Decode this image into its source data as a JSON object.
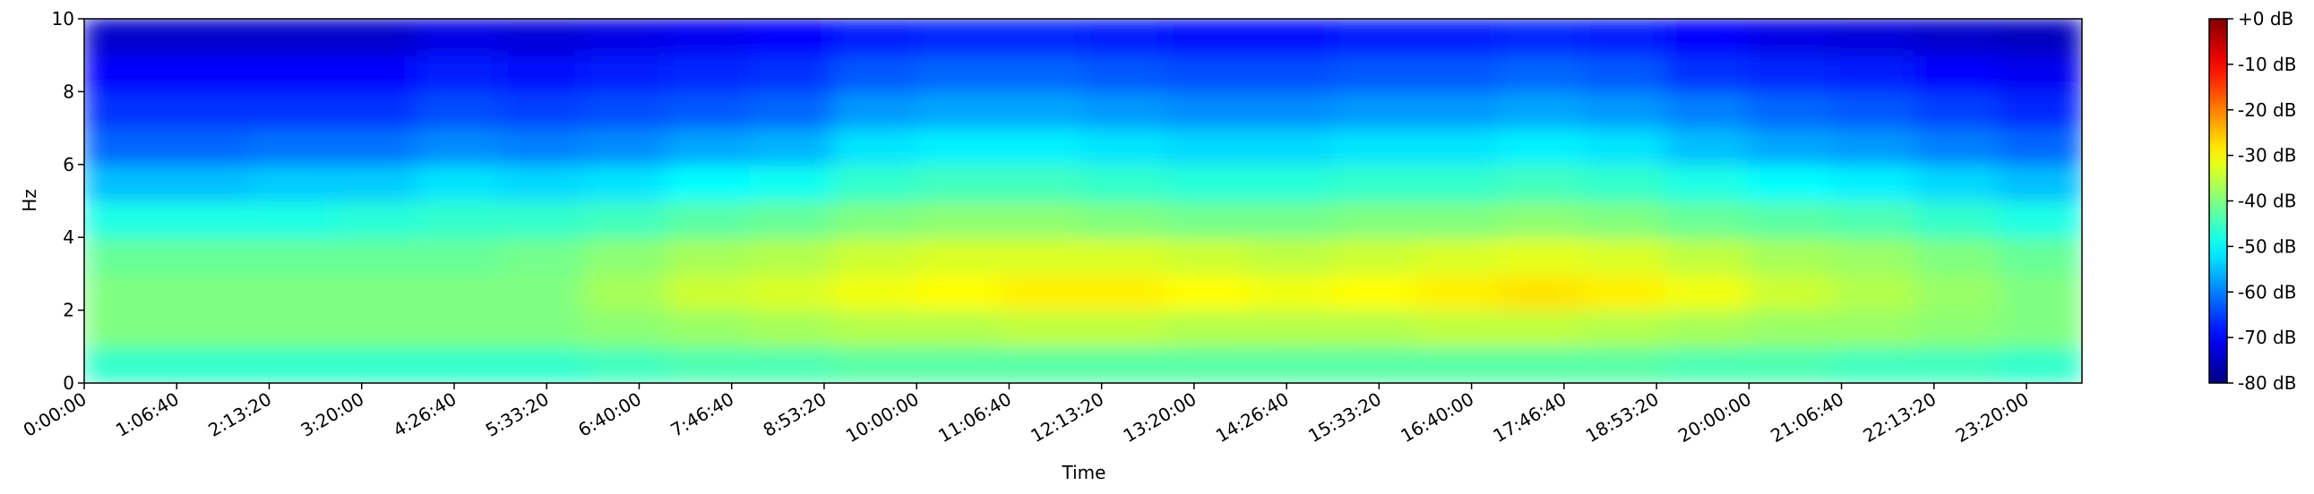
{
  "chart_data": {
    "type": "spectrogram",
    "colormap": "jet",
    "x_label": "Time",
    "y_label": "Hz",
    "xlim": [
      0,
      86400
    ],
    "ylim": [
      0,
      10
    ],
    "xticks": [
      {
        "value": 0,
        "label": "0:00:00"
      },
      {
        "value": 4000,
        "label": "1:06:40"
      },
      {
        "value": 8000,
        "label": "2:13:20"
      },
      {
        "value": 12000,
        "label": "3:20:00"
      },
      {
        "value": 16000,
        "label": "4:26:40"
      },
      {
        "value": 20000,
        "label": "5:33:20"
      },
      {
        "value": 24000,
        "label": "6:40:00"
      },
      {
        "value": 28000,
        "label": "7:46:40"
      },
      {
        "value": 32000,
        "label": "8:53:20"
      },
      {
        "value": 36000,
        "label": "10:00:00"
      },
      {
        "value": 40000,
        "label": "11:06:40"
      },
      {
        "value": 44000,
        "label": "12:13:20"
      },
      {
        "value": 48000,
        "label": "13:20:00"
      },
      {
        "value": 52000,
        "label": "14:26:40"
      },
      {
        "value": 56000,
        "label": "15:33:20"
      },
      {
        "value": 60000,
        "label": "16:40:00"
      },
      {
        "value": 64000,
        "label": "17:46:40"
      },
      {
        "value": 68000,
        "label": "18:53:20"
      },
      {
        "value": 72000,
        "label": "20:00:00"
      },
      {
        "value": 76000,
        "label": "21:06:40"
      },
      {
        "value": 80000,
        "label": "22:13:20"
      },
      {
        "value": 84000,
        "label": "23:20:00"
      }
    ],
    "yticks": [
      0,
      2,
      4,
      6,
      8,
      10
    ],
    "time_bins": [
      0,
      3600,
      7200,
      10800,
      14400,
      18000,
      21600,
      25200,
      28800,
      32400,
      36000,
      39600,
      43200,
      46800,
      50400,
      54000,
      57600,
      61200,
      64800,
      68400,
      72000,
      75600,
      79200,
      82800,
      86400
    ],
    "freq_bins": [
      0,
      1,
      2,
      3,
      4,
      5,
      6,
      7,
      8,
      9,
      10
    ],
    "values": [
      [
        -46,
        -46,
        -46,
        -46,
        -46,
        -46,
        -45,
        -44,
        -44,
        -43,
        -43,
        -43,
        -43,
        -43,
        -43,
        -43,
        -43,
        -43,
        -43,
        -44,
        -44,
        -45,
        -45,
        -46
      ],
      [
        -40,
        -40,
        -40,
        -40,
        -40,
        -40,
        -39,
        -38,
        -37,
        -36,
        -36,
        -35,
        -35,
        -36,
        -36,
        -36,
        -35,
        -35,
        -36,
        -37,
        -38,
        -38,
        -39,
        -40
      ],
      [
        -40,
        -40,
        -40,
        -40,
        -40,
        -40,
        -37,
        -34,
        -33,
        -31,
        -30,
        -29,
        -29,
        -30,
        -31,
        -30,
        -29,
        -28,
        -29,
        -31,
        -34,
        -36,
        -38,
        -40
      ],
      [
        -42,
        -42,
        -42,
        -42,
        -42,
        -41,
        -39,
        -37,
        -36,
        -34,
        -33,
        -33,
        -33,
        -34,
        -35,
        -34,
        -33,
        -32,
        -33,
        -35,
        -37,
        -38,
        -40,
        -42
      ],
      [
        -48,
        -48,
        -48,
        -47,
        -46,
        -46,
        -45,
        -43,
        -42,
        -40,
        -39,
        -39,
        -40,
        -41,
        -41,
        -40,
        -40,
        -39,
        -40,
        -42,
        -43,
        -44,
        -46,
        -48
      ],
      [
        -55,
        -55,
        -54,
        -54,
        -52,
        -53,
        -52,
        -50,
        -49,
        -46,
        -45,
        -45,
        -46,
        -47,
        -47,
        -46,
        -46,
        -45,
        -46,
        -48,
        -50,
        -51,
        -53,
        -55
      ],
      [
        -62,
        -62,
        -61,
        -61,
        -59,
        -60,
        -59,
        -57,
        -56,
        -52,
        -51,
        -51,
        -52,
        -53,
        -53,
        -52,
        -52,
        -51,
        -52,
        -55,
        -57,
        -58,
        -60,
        -62
      ],
      [
        -66,
        -66,
        -66,
        -66,
        -64,
        -65,
        -64,
        -63,
        -62,
        -58,
        -57,
        -57,
        -58,
        -59,
        -59,
        -58,
        -58,
        -57,
        -58,
        -60,
        -62,
        -63,
        -65,
        -67
      ],
      [
        -70,
        -70,
        -70,
        -70,
        -68,
        -69,
        -68,
        -67,
        -66,
        -63,
        -62,
        -62,
        -63,
        -64,
        -64,
        -63,
        -63,
        -62,
        -63,
        -66,
        -67,
        -68,
        -70,
        -71
      ],
      [
        -74,
        -74,
        -74,
        -74,
        -72,
        -73,
        -72,
        -71,
        -70,
        -68,
        -67,
        -67,
        -68,
        -69,
        -69,
        -68,
        -68,
        -67,
        -68,
        -70,
        -72,
        -73,
        -74,
        -75
      ]
    ],
    "clim": [
      -80,
      0
    ],
    "colorbar_ticks": [
      {
        "value": 0,
        "label": "+0 dB"
      },
      {
        "value": -10,
        "label": "-10 dB"
      },
      {
        "value": -20,
        "label": "-20 dB"
      },
      {
        "value": -30,
        "label": "-30 dB"
      },
      {
        "value": -40,
        "label": "-40 dB"
      },
      {
        "value": -50,
        "label": "-50 dB"
      },
      {
        "value": -60,
        "label": "-60 dB"
      },
      {
        "value": -70,
        "label": "-70 dB"
      },
      {
        "value": -80,
        "label": "-80 dB"
      }
    ]
  }
}
